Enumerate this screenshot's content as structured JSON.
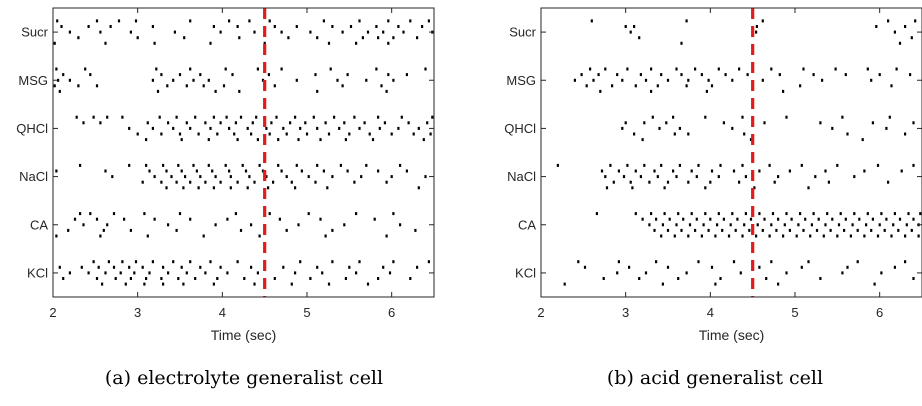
{
  "chart_data": [
    {
      "type": "raster",
      "caption": "(a) electrolyte generalist cell",
      "xlabel": "Time (sec)",
      "xlim": [
        2,
        6.5
      ],
      "xticks": [
        2,
        3,
        4,
        5,
        6
      ],
      "categories": [
        "Sucr",
        "MSG",
        "QHCl",
        "NaCl",
        "CA",
        "KCl"
      ],
      "stimulus_time": 4.5,
      "stimulus_color": "#e41a1c",
      "series": [
        {
          "name": "Sucr",
          "trials": [
            [
              2.05,
              2.52,
              2.78,
              2.98,
              3.62,
              4.08,
              4.32,
              4.56,
              5.2,
              5.62,
              5.96,
              6.22,
              6.44
            ],
            [
              2.1,
              2.42,
              2.68,
              3.18,
              3.9,
              4.18,
              4.62,
              4.88,
              5.3,
              5.52,
              5.82,
              6.08,
              6.36
            ],
            [
              2.2,
              2.56,
              2.92,
              3.44,
              3.98,
              4.38,
              4.7,
              5.04,
              5.42,
              5.72,
              5.9,
              6.14,
              6.48
            ],
            [
              2.3,
              3.0,
              3.55,
              4.2,
              4.78,
              5.12,
              5.66,
              5.84,
              6.02,
              6.3
            ],
            [
              2.02,
              2.62,
              3.2,
              3.86,
              4.5,
              5.26,
              5.58,
              5.96
            ]
          ]
        },
        {
          "name": "MSG",
          "trials": [
            [
              2.04,
              2.38,
              3.22,
              3.62,
              4.04,
              4.42,
              4.7,
              5.28,
              5.82,
              6.4
            ],
            [
              2.12,
              2.44,
              3.28,
              3.5,
              3.74,
              4.12,
              4.55,
              5.1,
              5.48,
              5.96,
              6.18
            ],
            [
              2.06,
              2.2,
              3.18,
              3.42,
              3.66,
              3.84,
              4.48,
              4.88,
              5.36,
              5.7,
              6.02
            ],
            [
              2.02,
              2.3,
              2.52,
              3.35,
              3.58,
              3.78,
              4.02,
              4.62,
              5.42,
              5.88
            ],
            [
              2.08,
              3.24,
              3.92,
              4.2,
              5.12,
              5.94
            ]
          ]
        },
        {
          "name": "QHCl",
          "trials": [
            [
              2.28,
              2.48,
              2.64,
              2.82,
              3.26,
              3.46,
              3.68,
              3.9,
              4.05,
              4.22,
              4.4,
              4.64,
              4.86,
              5.08,
              5.32,
              5.56,
              5.84,
              6.12,
              6.48
            ],
            [
              2.36,
              2.56,
              3.12,
              3.36,
              3.58,
              3.8,
              3.98,
              4.16,
              4.36,
              4.58,
              4.8,
              4.98,
              5.22,
              5.44,
              5.68,
              5.92,
              6.2,
              6.42
            ],
            [
              2.9,
              3.18,
              3.42,
              3.62,
              3.86,
              4.08,
              4.3,
              4.52,
              4.72,
              4.92,
              5.12,
              5.38,
              5.62,
              5.86,
              6.08,
              6.32
            ],
            [
              3.0,
              3.28,
              3.5,
              3.72,
              3.94,
              4.14,
              4.34,
              4.56,
              4.76,
              5.0,
              5.26,
              5.5,
              5.74,
              6.0,
              6.26,
              6.46
            ],
            [
              3.1,
              3.52,
              3.84,
              4.18,
              4.42,
              4.66,
              4.9,
              5.16,
              5.46,
              5.78,
              6.38
            ]
          ]
        },
        {
          "name": "NaCl",
          "trials": [
            [
              2.32,
              2.9,
              3.1,
              3.3,
              3.48,
              3.66,
              3.84,
              4.04,
              4.24,
              4.44,
              4.66,
              4.88,
              5.12,
              5.4,
              5.7,
              6.1
            ],
            [
              2.04,
              2.62,
              3.14,
              3.34,
              3.52,
              3.7,
              3.88,
              4.08,
              4.28,
              4.48,
              4.7,
              4.94,
              5.2,
              5.48,
              5.84,
              6.18
            ],
            [
              2.7,
              3.2,
              3.4,
              3.56,
              3.74,
              3.92,
              4.1,
              4.32,
              4.52,
              4.76,
              5.02,
              5.3,
              5.64,
              6.0,
              6.4
            ],
            [
              3.06,
              3.28,
              3.46,
              3.62,
              3.8,
              3.98,
              4.18,
              4.38,
              4.6,
              4.82,
              5.1,
              5.56,
              5.94
            ],
            [
              3.34,
              3.54,
              3.72,
              3.9,
              4.1,
              4.3,
              4.54,
              4.86,
              5.24,
              6.32
            ]
          ]
        },
        {
          "name": "CA",
          "trials": [
            [
              2.32,
              2.44,
              2.72,
              3.08,
              3.5,
              4.16,
              4.56,
              5.02,
              5.58,
              6.02
            ],
            [
              2.26,
              2.52,
              2.84,
              3.2,
              3.62,
              4.06,
              4.68,
              5.16,
              5.8
            ],
            [
              2.36,
              2.64,
              3.36,
              3.92,
              4.34,
              4.9,
              5.44,
              6.1
            ],
            [
              2.18,
              2.6,
              2.92,
              3.46,
              4.22,
              4.76,
              5.3,
              6.28
            ],
            [
              2.04,
              2.56,
              3.12,
              3.78,
              4.44,
              5.22,
              5.94
            ]
          ]
        },
        {
          "name": "KCl",
          "trials": [
            [
              2.48,
              2.66,
              2.82,
              2.98,
              3.18,
              3.42,
              3.62,
              3.86,
              4.18,
              4.5,
              4.92,
              5.3,
              5.62,
              6.02,
              6.44
            ],
            [
              2.08,
              2.34,
              2.54,
              2.72,
              2.9,
              3.06,
              3.3,
              3.52,
              3.74,
              3.98,
              4.34,
              4.72,
              5.12,
              5.5,
              5.9,
              6.3
            ],
            [
              2.2,
              2.42,
              2.62,
              2.8,
              2.96,
              3.14,
              3.36,
              3.58,
              3.8,
              4.06,
              4.42,
              4.86,
              5.18,
              5.58,
              5.98
            ],
            [
              2.12,
              2.52,
              2.74,
              2.92,
              3.1,
              3.28,
              3.48,
              3.68,
              3.94,
              4.26,
              4.62,
              5.04,
              5.46,
              5.84,
              6.22
            ],
            [
              2.58,
              2.86,
              3.08,
              3.3,
              3.54,
              3.9,
              4.38,
              4.82,
              5.26,
              5.72
            ]
          ]
        }
      ]
    },
    {
      "type": "raster",
      "caption": "(b) acid generalist cell",
      "xlabel": "Time (sec)",
      "xlim": [
        2,
        6.5
      ],
      "xticks": [
        2,
        3,
        4,
        5,
        6
      ],
      "categories": [
        "Sucr",
        "MSG",
        "QHCl",
        "NaCl",
        "CA",
        "KCl"
      ],
      "stimulus_time": 4.5,
      "stimulus_color": "#e41a1c",
      "series": [
        {
          "name": "Sucr",
          "trials": [
            [
              2.6,
              3.72,
              4.62,
              6.1,
              6.42
            ],
            [
              3.0,
              3.1,
              4.55,
              5.96,
              6.3
            ],
            [
              3.06,
              4.54,
              6.18
            ],
            [
              3.16,
              6.38
            ],
            [
              3.66,
              6.24
            ]
          ]
        },
        {
          "name": "MSG",
          "trials": [
            [
              2.58,
              2.76,
              3.02,
              3.3,
              3.6,
              3.82,
              4.1,
              4.34,
              4.72,
              5.1,
              5.48,
              5.86,
              6.2
            ],
            [
              2.48,
              2.68,
              2.9,
              3.18,
              3.42,
              3.66,
              3.9,
              4.18,
              4.44,
              4.82,
              5.22,
              5.6,
              6.0,
              6.36
            ],
            [
              2.4,
              2.62,
              2.96,
              3.24,
              3.5,
              3.74,
              3.98,
              4.26,
              4.62,
              5.32,
              5.9
            ],
            [
              2.54,
              2.84,
              3.12,
              3.38,
              3.72,
              4.02,
              4.5,
              5.06,
              6.14
            ],
            [
              2.7,
              3.3,
              3.96,
              4.86
            ]
          ]
        },
        {
          "name": "QHCl",
          "trials": [
            [
              3.32,
              3.56,
              3.94,
              4.38,
              4.9,
              5.56,
              6.12
            ],
            [
              3.0,
              3.22,
              3.48,
              4.16,
              4.64,
              5.3,
              5.92,
              6.4
            ],
            [
              2.96,
              3.4,
              3.64,
              4.26,
              5.44,
              6.08
            ],
            [
              3.1,
              3.58,
              3.74,
              4.4,
              5.62,
              6.3
            ],
            [
              3.2,
              4.48,
              5.8
            ]
          ]
        },
        {
          "name": "NaCl",
          "trials": [
            [
              2.2,
              2.82,
              3.02,
              3.22,
              3.42,
              3.64,
              3.86,
              4.12,
              4.38,
              4.7,
              5.08,
              5.5,
              5.98,
              6.4
            ],
            [
              2.72,
              2.92,
              3.12,
              3.34,
              3.56,
              3.78,
              4.02,
              4.28,
              4.58,
              4.94,
              5.36,
              5.82,
              6.26
            ],
            [
              2.76,
              2.98,
              3.18,
              3.38,
              3.6,
              3.84,
              4.1,
              4.42,
              4.8,
              5.24,
              5.7
            ],
            [
              2.86,
              3.06,
              3.28,
              3.5,
              3.74,
              4.0,
              4.34,
              4.76,
              5.4,
              6.1
            ],
            [
              2.78,
              3.08,
              3.46,
              3.94,
              4.52,
              5.16
            ]
          ]
        },
        {
          "name": "CA",
          "trials": [
            [
              2.66,
              3.12,
              3.3,
              3.46,
              3.62,
              3.78,
              3.94,
              4.1,
              4.26,
              4.42,
              4.58,
              4.74,
              4.9,
              5.06,
              5.22,
              5.38,
              5.54,
              5.7,
              5.86,
              6.02,
              6.18,
              6.34,
              6.48
            ],
            [
              3.2,
              3.36,
              3.52,
              3.68,
              3.84,
              4.0,
              4.16,
              4.32,
              4.48,
              4.64,
              4.8,
              4.96,
              5.12,
              5.28,
              5.44,
              5.6,
              5.76,
              5.92,
              6.08,
              6.24,
              6.4
            ],
            [
              3.28,
              3.44,
              3.6,
              3.76,
              3.92,
              4.08,
              4.24,
              4.4,
              4.56,
              4.72,
              4.88,
              5.04,
              5.2,
              5.36,
              5.52,
              5.68,
              5.84,
              6.0,
              6.16,
              6.32,
              6.46
            ],
            [
              3.34,
              3.5,
              3.66,
              3.82,
              3.98,
              4.14,
              4.3,
              4.46,
              4.62,
              4.78,
              4.94,
              5.1,
              5.26,
              5.42,
              5.58,
              5.74,
              5.9,
              6.06,
              6.22,
              6.38
            ],
            [
              3.42,
              3.58,
              3.74,
              3.9,
              4.06,
              4.22,
              4.38,
              4.54,
              4.7,
              4.86,
              5.02,
              5.18,
              5.34,
              5.5,
              5.66,
              5.82,
              5.98,
              6.14,
              6.3,
              6.46
            ]
          ]
        },
        {
          "name": "KCl",
          "trials": [
            [
              2.44,
              2.92,
              3.36,
              3.86,
              4.28,
              4.72,
              5.16,
              5.74,
              6.3
            ],
            [
              2.52,
              3.04,
              3.5,
              4.02,
              4.58,
              5.08,
              5.62,
              6.18
            ],
            [
              2.9,
              3.24,
              3.72,
              4.36,
              4.9,
              5.56,
              6.02
            ],
            [
              2.74,
              3.16,
              3.62,
              4.12,
              4.66,
              5.3,
              6.4
            ],
            [
              2.28,
              3.44,
              4.06,
              4.8,
              5.94
            ]
          ]
        }
      ]
    }
  ]
}
